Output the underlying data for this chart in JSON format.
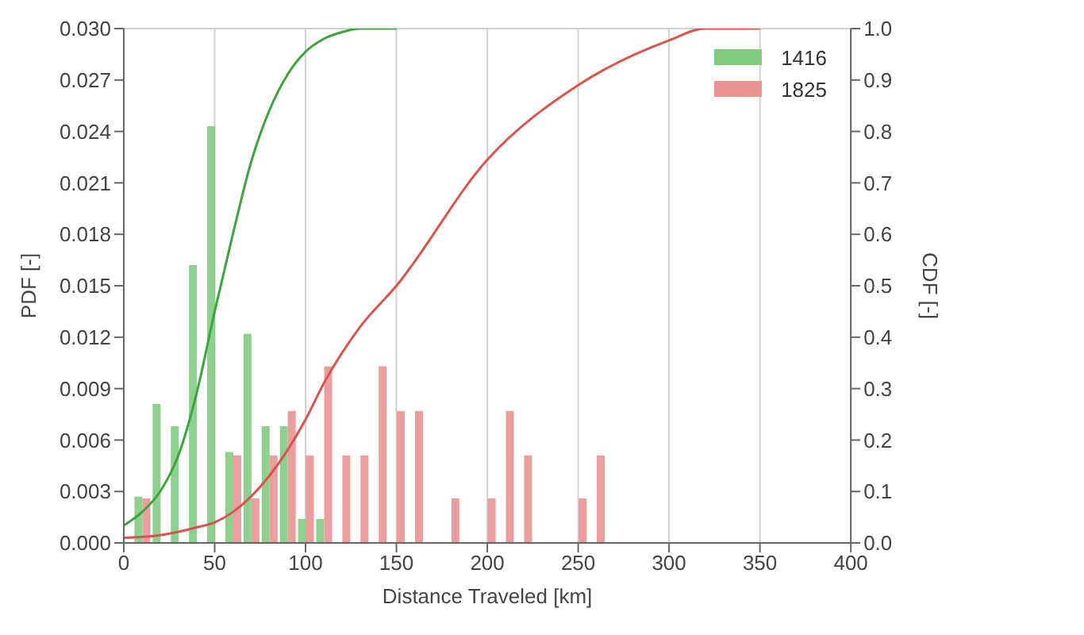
{
  "chart_data": {
    "type": "bar",
    "xlabel": "Distance Traveled [km]",
    "ylabel": "PDF [-]",
    "y2label": "CDF [-]",
    "xlim": [
      0,
      400
    ],
    "xticks": [
      0,
      50,
      100,
      150,
      200,
      250,
      300,
      350,
      400
    ],
    "ylim": [
      0,
      0.03
    ],
    "yticks": [
      {
        "value": 0,
        "label": "0.000"
      },
      {
        "value": 0.003,
        "label": "0.003"
      },
      {
        "value": 0.006,
        "label": "0.006"
      },
      {
        "value": 0.009,
        "label": "0.009"
      },
      {
        "value": 0.012,
        "label": "0.012"
      },
      {
        "value": 0.015,
        "label": "0.015"
      },
      {
        "value": 0.018,
        "label": "0.018"
      },
      {
        "value": 0.021,
        "label": "0.021"
      },
      {
        "value": 0.024,
        "label": "0.024"
      },
      {
        "value": 0.027,
        "label": "0.027"
      },
      {
        "value": 0.03,
        "label": "0.030"
      }
    ],
    "y2lim": [
      0,
      1
    ],
    "y2ticks": [
      {
        "value": 0,
        "label": "0.0"
      },
      {
        "value": 0.1,
        "label": "0.1"
      },
      {
        "value": 0.2,
        "label": "0.2"
      },
      {
        "value": 0.3,
        "label": "0.3"
      },
      {
        "value": 0.4,
        "label": "0.4"
      },
      {
        "value": 0.5,
        "label": "0.5"
      },
      {
        "value": 0.6,
        "label": "0.6"
      },
      {
        "value": 0.7,
        "label": "0.7"
      },
      {
        "value": 0.8,
        "label": "0.8"
      },
      {
        "value": 0.9,
        "label": "0.9"
      },
      {
        "value": 1,
        "label": "1.0"
      }
    ],
    "grid": true,
    "legend": "top right",
    "series": [
      {
        "name": "1416",
        "color": "#82cc82",
        "x": [
          10,
          20,
          30,
          40,
          50,
          60,
          70,
          80,
          90,
          100,
          110
        ],
        "values": [
          0.0027,
          0.0081,
          0.0068,
          0.0162,
          0.0243,
          0.0053,
          0.0122,
          0.0068,
          0.0068,
          0.0014,
          0.0014
        ]
      },
      {
        "name": "1825",
        "color": "#ea9494",
        "x": [
          10,
          60,
          70,
          80,
          90,
          100,
          110,
          120,
          130,
          140,
          150,
          160,
          180,
          200,
          210,
          220,
          250,
          260
        ],
        "values": [
          0.0026,
          0.0051,
          0.0026,
          0.0051,
          0.0077,
          0.0051,
          0.0103,
          0.0051,
          0.0051,
          0.0103,
          0.0077,
          0.0077,
          0.0026,
          0.0026,
          0.0077,
          0.0051,
          0.0026,
          0.0051
        ]
      },
      {
        "type": "line",
        "axis": "y2",
        "color": "#3ea53e",
        "x": [
          0,
          10,
          20,
          30,
          40,
          50,
          60,
          70,
          80,
          90,
          100,
          110,
          120,
          130,
          150
        ],
        "values": [
          0.034,
          0.06,
          0.1,
          0.17,
          0.29,
          0.45,
          0.6,
          0.74,
          0.84,
          0.91,
          0.955,
          0.98,
          0.993,
          1.0,
          1.0
        ]
      },
      {
        "type": "line",
        "axis": "y2",
        "color": "#d9534f",
        "x": [
          0,
          20,
          40,
          50,
          60,
          70,
          80,
          90,
          100,
          110,
          130,
          150,
          200,
          250,
          300,
          320,
          350
        ],
        "values": [
          0.01,
          0.015,
          0.03,
          0.04,
          0.06,
          0.09,
          0.13,
          0.18,
          0.24,
          0.31,
          0.42,
          0.5,
          0.745,
          0.89,
          0.977,
          1.0,
          1.0
        ]
      }
    ]
  }
}
